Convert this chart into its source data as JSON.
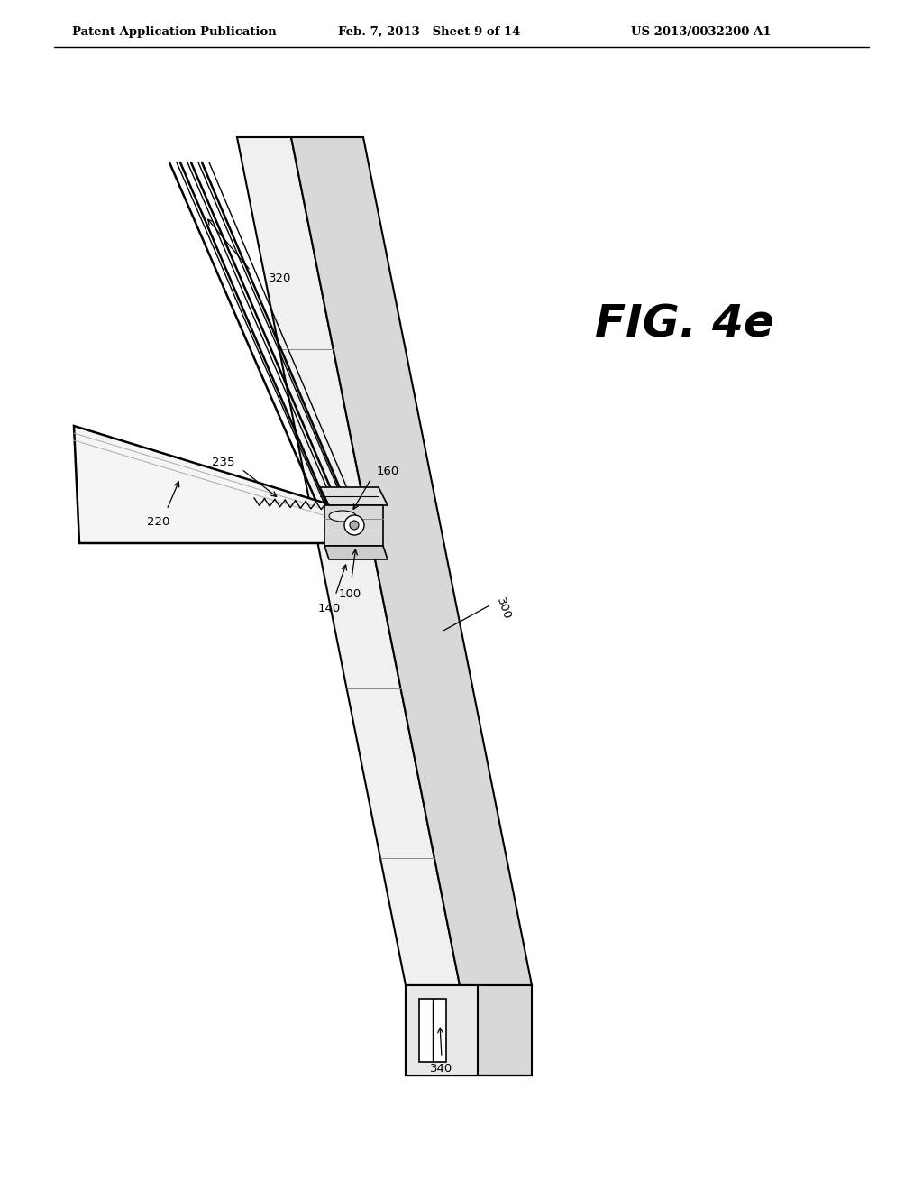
{
  "bg_color": "#ffffff",
  "fig_label": "FIG. 4e",
  "header_left": "Patent Application Publication",
  "header_mid": "Feb. 7, 2013   Sheet 9 of 14",
  "header_right": "US 2013/0032200 A1",
  "black": "#000000",
  "gray_light": "#f0f0f0",
  "gray_mid": "#d8d8d8",
  "gray_dark": "#b0b0b0"
}
